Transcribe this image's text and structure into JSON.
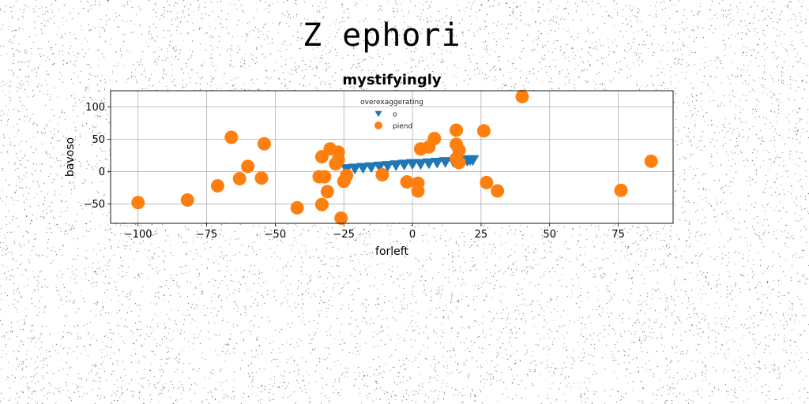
{
  "figure": {
    "suptitle": "Z ephori"
  },
  "chart_data": {
    "type": "scatter",
    "title": "mystifyingly",
    "xlabel": "forleft",
    "ylabel": "bavoso",
    "xlim": [
      -110,
      95
    ],
    "ylim": [
      -80,
      125
    ],
    "xticks": [
      -100,
      -75,
      -50,
      -25,
      0,
      25,
      50,
      75
    ],
    "xtick_labels": [
      "−100",
      "−75",
      "−50",
      "−25",
      "0",
      "25",
      "50",
      "75"
    ],
    "yticks": [
      -50,
      0,
      50,
      100
    ],
    "ytick_labels": [
      "−50",
      "0",
      "50",
      "100"
    ],
    "grid": true,
    "legend": {
      "title": "overexaggerating",
      "placement": "top-center"
    },
    "series": [
      {
        "name": "o",
        "marker": "triangle-down",
        "color": "#1f77b4",
        "x": [
          -24,
          -21,
          -18,
          -15,
          -12,
          -9,
          -6,
          -3,
          0,
          3,
          6,
          9,
          12,
          15,
          18,
          20,
          21,
          22
        ],
        "y": [
          4,
          5,
          6,
          7,
          8,
          9,
          10,
          11,
          12,
          12,
          13,
          14,
          15,
          15,
          16,
          17,
          18,
          18
        ]
      },
      {
        "name": "piend",
        "marker": "circle",
        "color": "#ff7f0e",
        "x": [
          -100,
          -82,
          -71,
          -66,
          -63,
          -60,
          -54,
          -55,
          -42,
          -34,
          -33,
          -33,
          -31,
          -32,
          -30,
          -28,
          -27,
          -27,
          -26,
          -25,
          -24,
          -11,
          -2,
          2,
          3,
          2,
          6,
          8,
          16,
          16,
          17,
          17,
          16,
          26,
          27,
          31,
          40,
          76,
          87
        ],
        "y": [
          -48,
          -44,
          -22,
          53,
          -11,
          8,
          43,
          -10,
          -56,
          -8,
          23,
          -51,
          -31,
          -8,
          35,
          12,
          30,
          18,
          -72,
          -15,
          -6,
          -5,
          -16,
          -18,
          35,
          -30,
          38,
          51,
          64,
          42,
          33,
          14,
          20,
          63,
          -17,
          -30,
          116,
          -29,
          16
        ]
      }
    ]
  }
}
